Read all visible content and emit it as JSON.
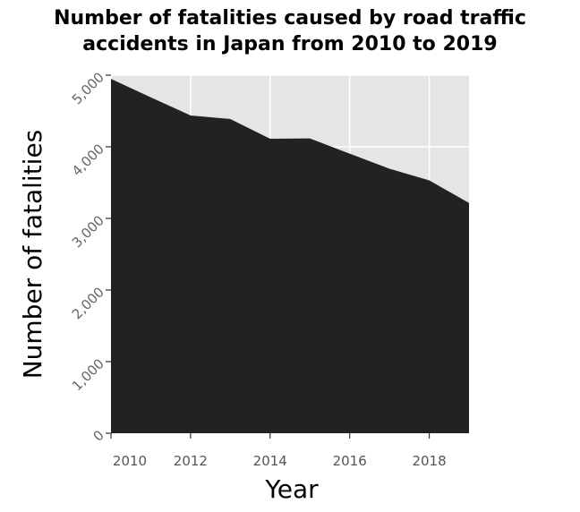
{
  "chart_data": {
    "type": "area",
    "title_lines": [
      "Number of fatalities caused by road traffic",
      "accidents in Japan from 2010 to 2019"
    ],
    "xlabel": "Year",
    "ylabel": "Number of fatalities",
    "x": [
      2010,
      2011,
      2012,
      2013,
      2014,
      2015,
      2016,
      2017,
      2018,
      2019
    ],
    "values": [
      4948,
      4691,
      4438,
      4388,
      4113,
      4117,
      3904,
      3694,
      3532,
      3215
    ],
    "xlim": [
      2010,
      2019
    ],
    "ylim": [
      0,
      5000
    ],
    "x_ticks": [
      2010,
      2012,
      2014,
      2016,
      2018
    ],
    "y_ticks": [
      0,
      1000,
      2000,
      3000,
      4000,
      5000
    ],
    "x_tick_labels": [
      "2010",
      "2012",
      "2014",
      "2016",
      "2018"
    ],
    "y_tick_labels": [
      "0",
      "1,000",
      "2,000",
      "3,000",
      "4,000",
      "5,000"
    ],
    "grid": true,
    "colors": {
      "fill": "#222222",
      "background": "#e5e5e5",
      "grid": "#ffffff"
    }
  }
}
